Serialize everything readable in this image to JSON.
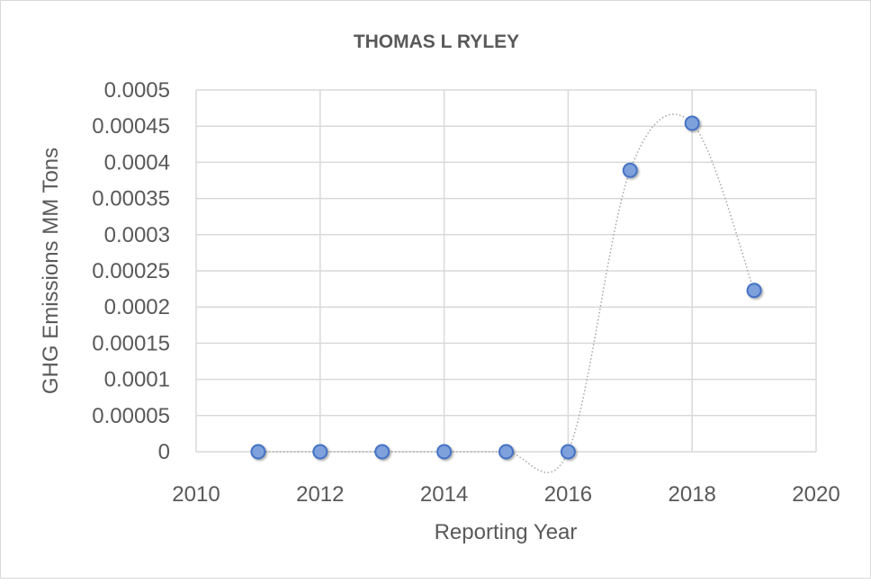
{
  "chart_data": {
    "type": "scatter",
    "title": "THOMAS L RYLEY",
    "xlabel": "Reporting Year",
    "ylabel": "GHG Emissions MM Tons",
    "xlim": [
      2010,
      2020
    ],
    "ylim": [
      0,
      0.0005
    ],
    "xticks": [
      2010,
      2012,
      2014,
      2016,
      2018,
      2020
    ],
    "xtick_labels": [
      "2010",
      "2012",
      "2014",
      "2016",
      "2018",
      "2020"
    ],
    "yticks": [
      0,
      5e-05,
      0.0001,
      0.00015,
      0.0002,
      0.00025,
      0.0003,
      0.00035,
      0.0004,
      0.00045,
      0.0005
    ],
    "ytick_labels": [
      "0",
      "0.00005",
      "0.0001",
      "0.00015",
      "0.0002",
      "0.00025",
      "0.0003",
      "0.00035",
      "0.0004",
      "0.00045",
      "0.0005"
    ],
    "grid": true,
    "line_style": "smoothed dotted",
    "series": [
      {
        "name": "GHG Emissions",
        "x": [
          2011,
          2012,
          2013,
          2014,
          2015,
          2016,
          2017,
          2018,
          2019
        ],
        "y": [
          0,
          0,
          0,
          0,
          0,
          0,
          0.000389,
          0.000454,
          0.000223
        ],
        "marker_color": "#7ea1dc",
        "marker_edge": "#4472c4",
        "line_color": "#a6a6a6"
      }
    ]
  }
}
